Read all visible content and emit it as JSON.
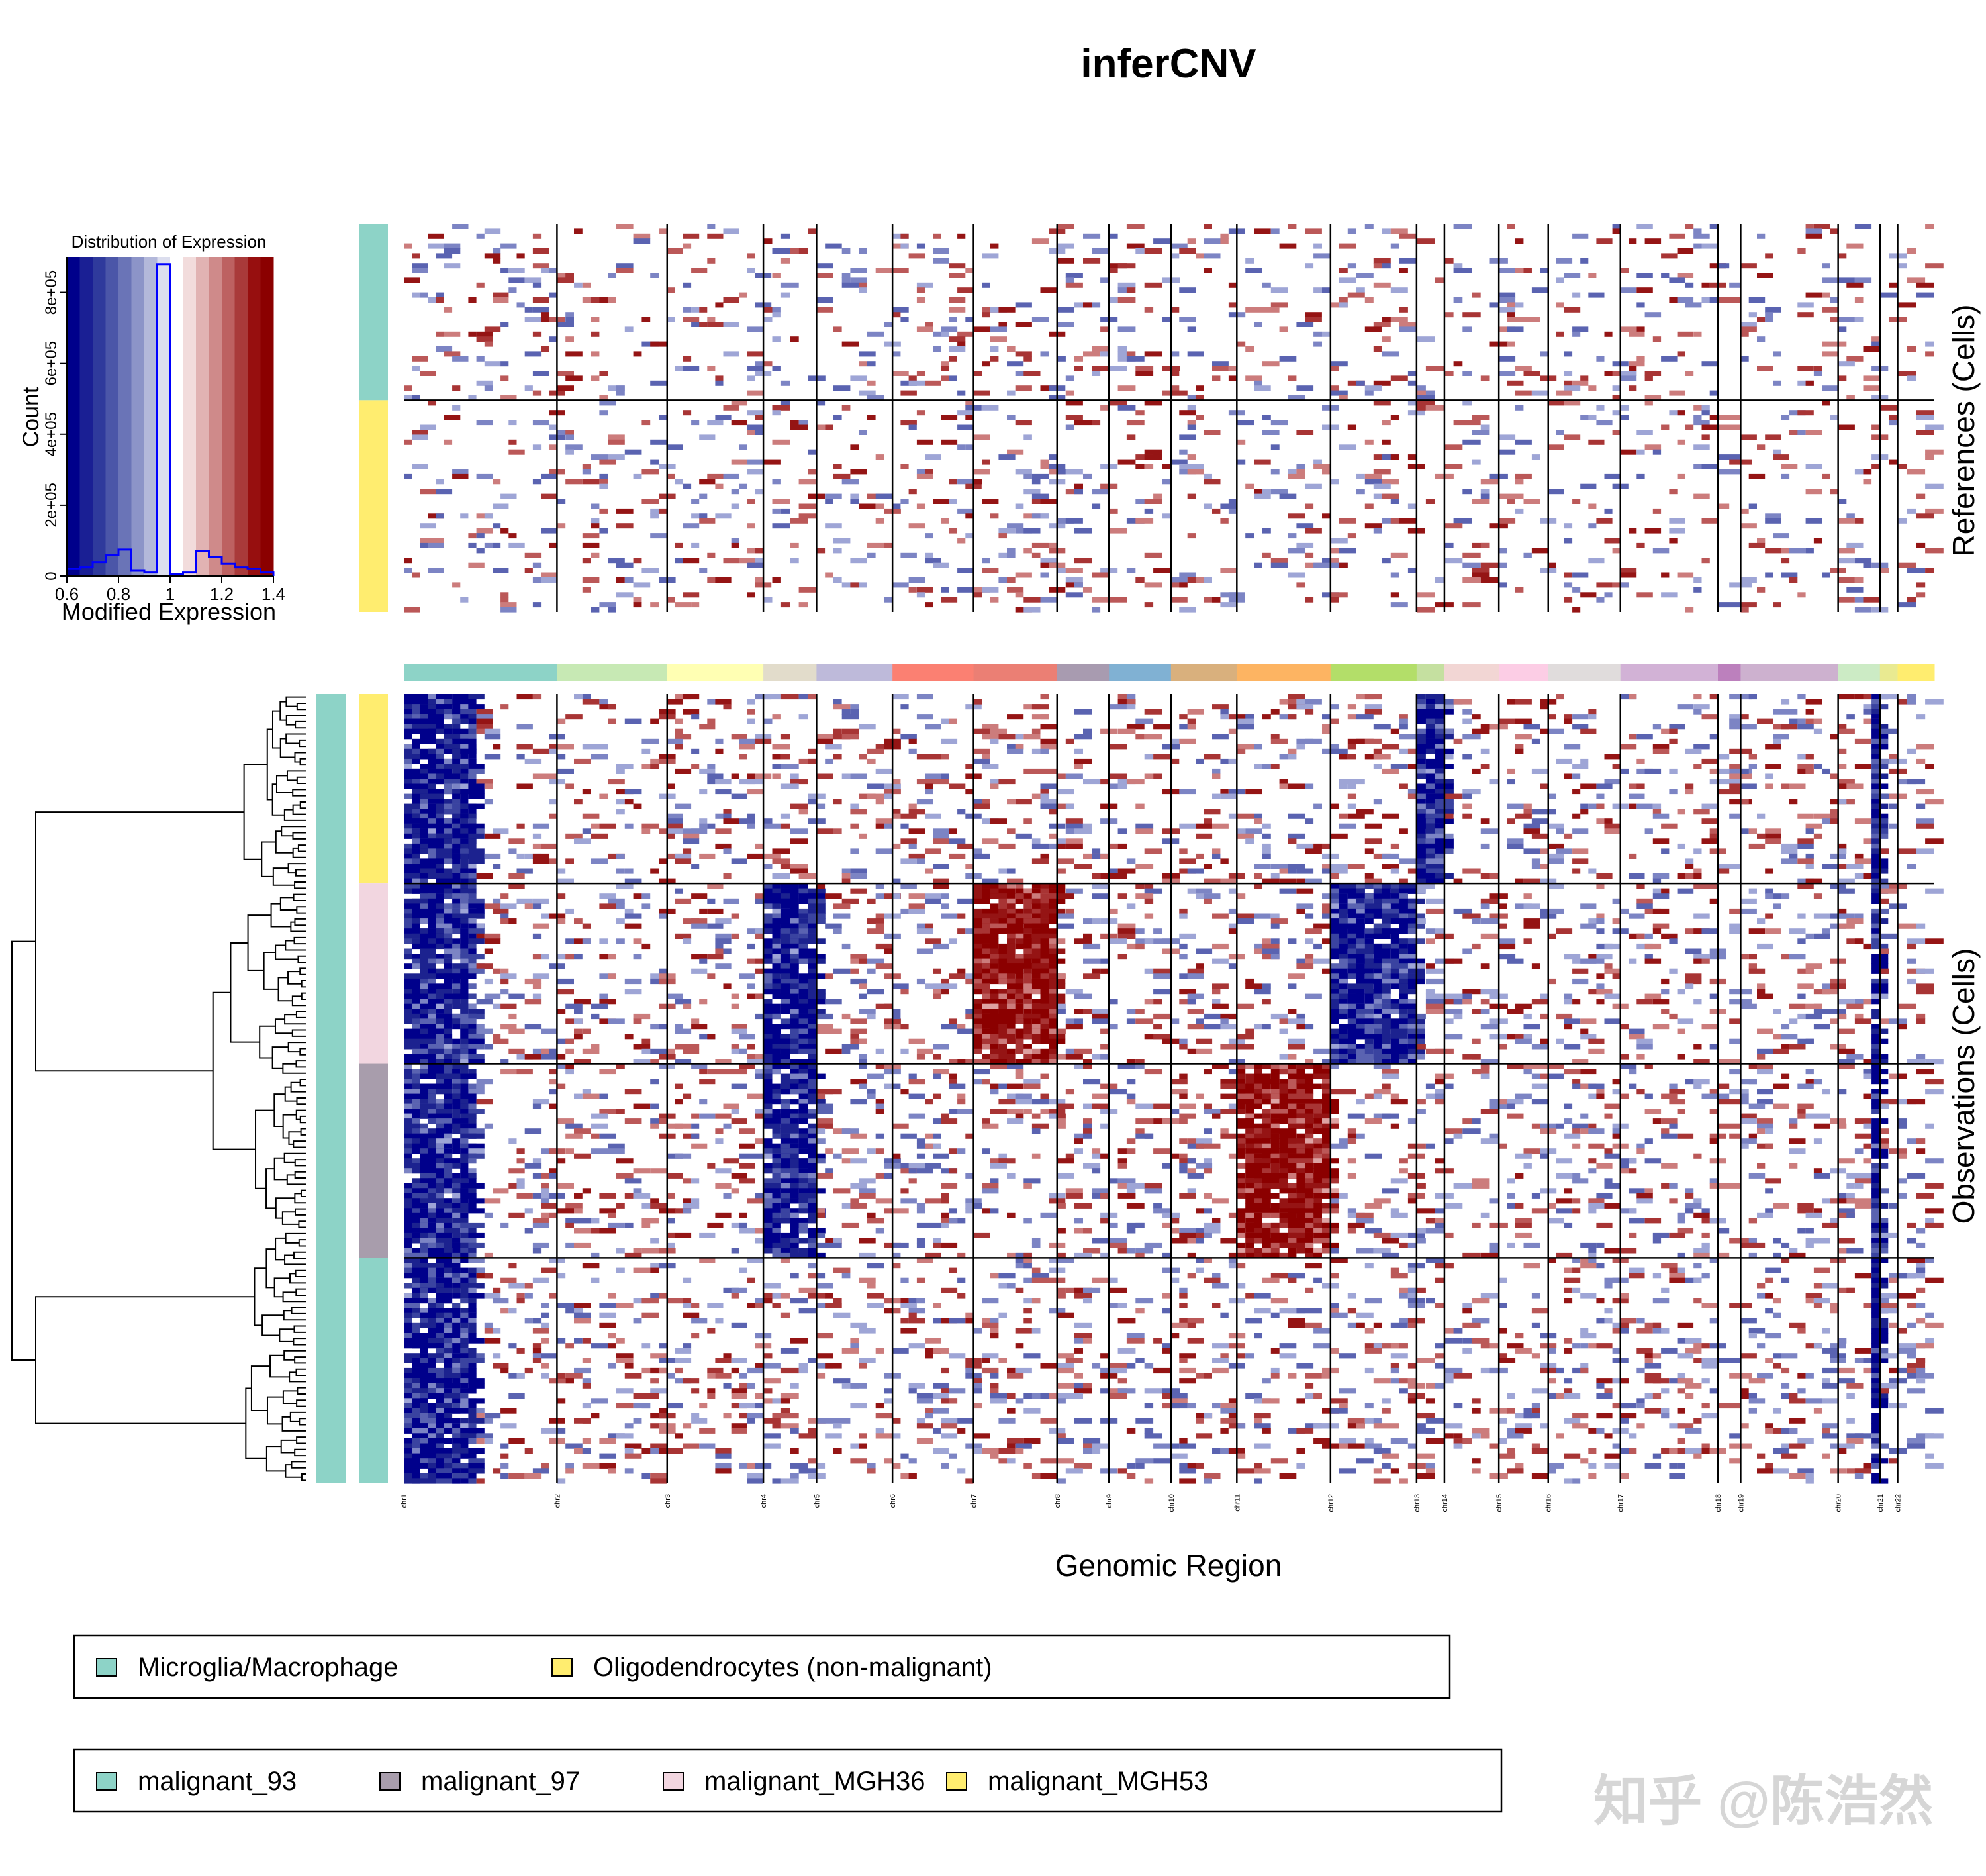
{
  "title": "inferCNV",
  "chart_data": [
    {
      "type": "histogram",
      "title": "Distribution of Expression",
      "xlabel": "Modified Expression",
      "ylabel": "Count",
      "x_ticks": [
        "0.6",
        "0.8",
        "1",
        "1.2",
        "1.4"
      ],
      "y_ticks": [
        "0",
        "2e+05",
        "4e+05",
        "6e+05",
        "8e+05"
      ],
      "xlim": [
        0.6,
        1.4
      ],
      "ylim": [
        0,
        900000
      ],
      "bins_x": [
        0.6,
        0.65,
        0.7,
        0.75,
        0.8,
        0.85,
        0.9,
        0.95,
        1.0,
        1.05,
        1.1,
        1.15,
        1.2,
        1.25,
        1.3,
        1.35,
        1.4
      ],
      "bin_counts": [
        20000,
        25000,
        40000,
        60000,
        75000,
        15000,
        10000,
        880000,
        5000,
        10000,
        70000,
        55000,
        35000,
        25000,
        20000,
        10000
      ],
      "color_scale": [
        "#00008b",
        "#1a1f94",
        "#2f3a9c",
        "#4b56a8",
        "#6a74b7",
        "#8c94c8",
        "#b3b8da",
        "#dcdeee",
        "#ffffff",
        "#f2dcdc",
        "#e1b3b3",
        "#cf8a8a",
        "#bd6161",
        "#a93a3a",
        "#970f0f",
        "#8b0000"
      ]
    },
    {
      "type": "heatmap",
      "xlabel": "Genomic Region",
      "references_label": "References (Cells)",
      "observations_label": "Observations (Cells)",
      "chromosomes": [
        "chr1",
        "chr2",
        "chr3",
        "chr4",
        "chr5",
        "chr6",
        "chr7",
        "chr8",
        "chr9",
        "chr10",
        "chr11",
        "chr12",
        "chr13",
        "chr14",
        "chr15",
        "chr16",
        "chr17",
        "chr18",
        "chr19",
        "chr20",
        "chr21",
        "chr22"
      ],
      "chromosome_relative_widths": [
        121,
        87,
        76,
        42,
        60,
        64,
        66,
        41,
        49,
        52,
        74,
        68,
        22,
        43,
        39,
        57,
        77,
        18,
        77,
        33,
        14,
        29
      ],
      "chromosome_colors": [
        "#8dd3c7",
        "#c7e9b4",
        "#ffffb3",
        "#e2dccb",
        "#bebada",
        "#fb8072",
        "#eb7f74",
        "#a89bb0",
        "#80b1d3",
        "#d9b07d",
        "#fdb462",
        "#b3de69",
        "#c5e0a0",
        "#f2d6d4",
        "#fccde5",
        "#e0dcdc",
        "#d2b2d6",
        "#bc80bd",
        "#cdb1cf",
        "#ccebc5",
        "#e9ea91",
        "#ffed6f"
      ],
      "reference_groups": [
        {
          "name": "Microglia/Macrophage",
          "color": "#8dd3c7",
          "cells": 40
        },
        {
          "name": "Oligodendrocytes (non-malignant)",
          "color": "#ffed6f",
          "cells": 48
        }
      ],
      "observation_groups": [
        {
          "name": "malignant_MGH53",
          "color": "#ffed6f",
          "cells": 42
        },
        {
          "name": "malignant_MGH36",
          "color": "#f2d6e0",
          "cells": 40
        },
        {
          "name": "malignant_97",
          "color": "#a89dac",
          "cells": 43
        },
        {
          "name": "malignant_93",
          "color": "#8dd3c7",
          "cells": 50
        }
      ],
      "cnv_events": [
        {
          "chromosome": "chr1",
          "group": "all observations",
          "state": "loss",
          "arm": "p"
        },
        {
          "chromosome": "chr20",
          "group": "all observations",
          "state": "loss",
          "arm": "q"
        },
        {
          "chromosome": "chr13",
          "group": "malignant_MGH53",
          "state": "loss",
          "arm": "whole"
        },
        {
          "chromosome": "chr4",
          "group": "malignant_MGH36",
          "state": "loss",
          "arm": "whole"
        },
        {
          "chromosome": "chr7",
          "group": "malignant_MGH36",
          "state": "gain",
          "arm": "whole"
        },
        {
          "chromosome": "chr12",
          "group": "malignant_MGH36",
          "state": "loss",
          "arm": "whole"
        },
        {
          "chromosome": "chr4",
          "group": "malignant_97",
          "state": "loss",
          "arm": "whole"
        },
        {
          "chromosome": "chr11",
          "group": "malignant_97",
          "state": "gain",
          "arm": "whole"
        }
      ]
    }
  ],
  "legend_references": [
    {
      "label": "Microglia/Macrophage",
      "color": "#8dd3c7"
    },
    {
      "label": "Oligodendrocytes (non-malignant)",
      "color": "#ffed6f"
    }
  ],
  "legend_observations": [
    {
      "label": "malignant_93",
      "color": "#8dd3c7"
    },
    {
      "label": "malignant_97",
      "color": "#a89dac"
    },
    {
      "label": "malignant_MGH36",
      "color": "#f2d6e0"
    },
    {
      "label": "malignant_MGH53",
      "color": "#ffed6f"
    }
  ],
  "watermark": "知乎 @陈浩然"
}
